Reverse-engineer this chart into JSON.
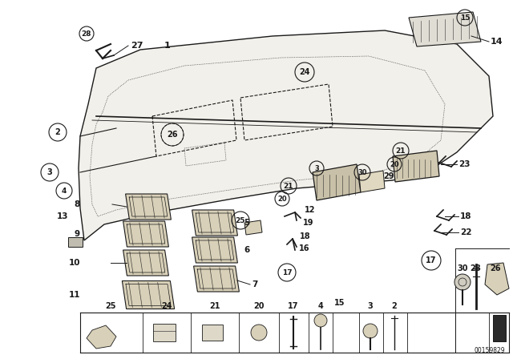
{
  "bg_color": "#ffffff",
  "line_color": "#1a1a1a",
  "watermark": "00159829",
  "fig_w": 6.4,
  "fig_h": 4.48,
  "dpi": 100
}
